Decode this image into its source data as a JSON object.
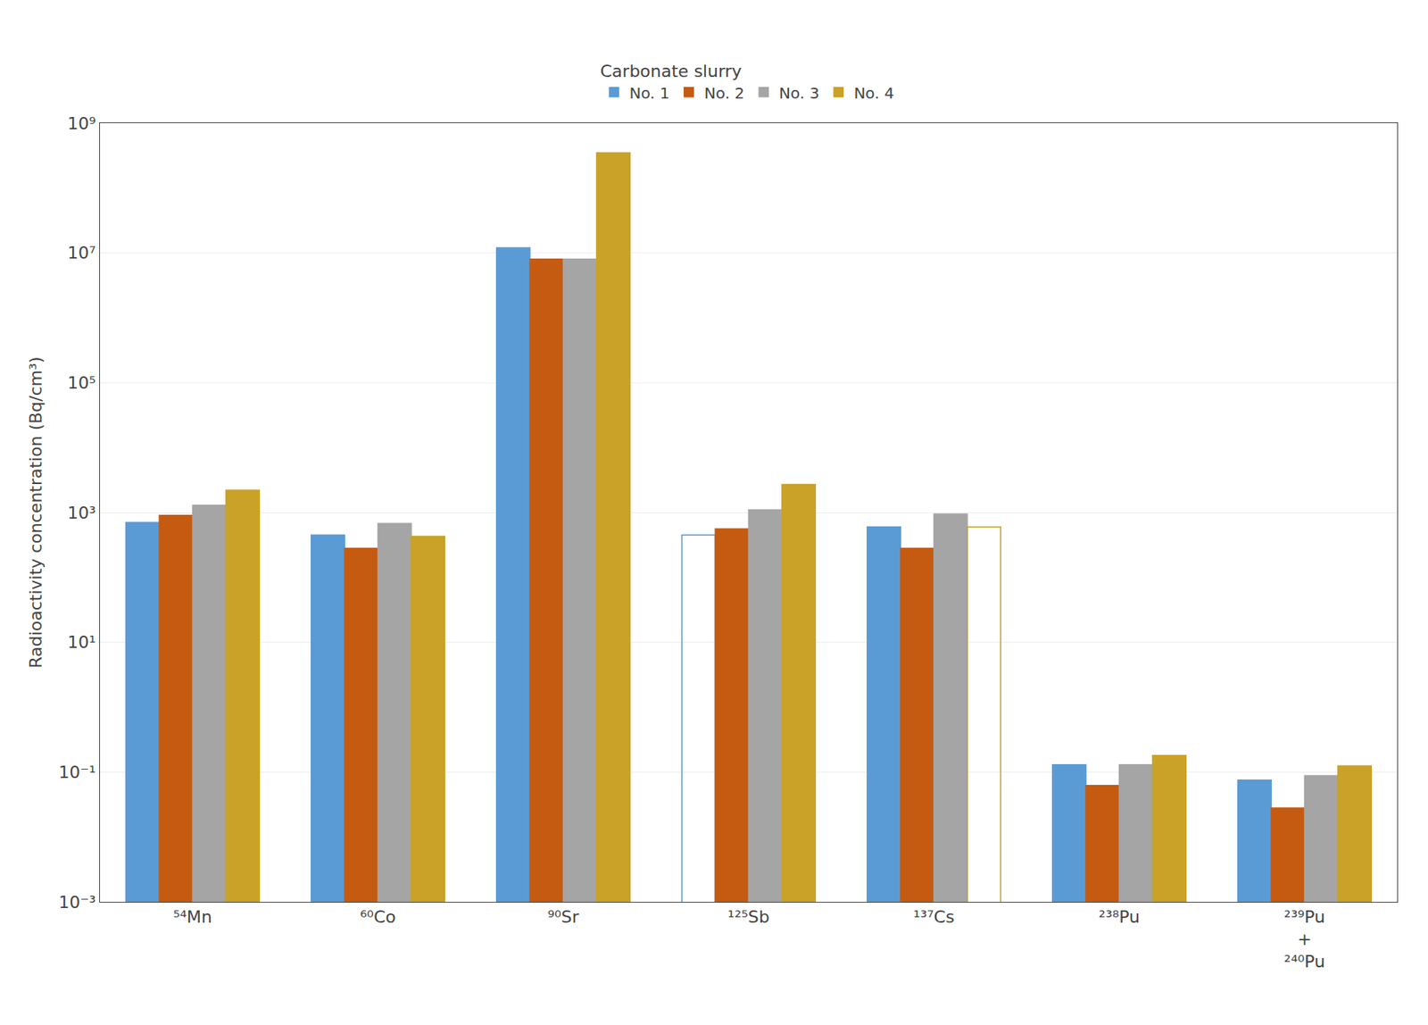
{
  "chart_data": {
    "type": "bar",
    "ylabel": "Radioactivity concentration (Bq/cm³)",
    "legend_title": "Carbonate slurry",
    "categories": [
      "⁵⁴Mn",
      "⁶⁰Co",
      "⁹⁰Sr",
      "¹²⁵Sb",
      "¹³⁷Cs",
      "²³⁸Pu",
      "²³⁹Pu\n+\n²⁴⁰Pu"
    ],
    "series": [
      {
        "name": "No. 1",
        "color": "#5B9BD5",
        "colors": [
          "#5B9BD5",
          "#5B9BD5",
          "#5B9BD5",
          "transparent",
          "#5B9BD5",
          "#5B9BD5",
          "#5B9BD5"
        ],
        "values": [
          700,
          450,
          12000000.0,
          450,
          600,
          0.13,
          0.075
        ]
      },
      {
        "name": "No. 2",
        "color": "#C55A11",
        "values": [
          900,
          280,
          8000000.0,
          560,
          280,
          0.062,
          0.028
        ]
      },
      {
        "name": "No. 3",
        "color": "#A5A5A5",
        "values": [
          1300,
          680,
          8000000.0,
          1100,
          950,
          0.13,
          0.088
        ]
      },
      {
        "name": "No. 4",
        "color": "#C9A227",
        "colors": [
          "#C9A227",
          "#C9A227",
          "#C9A227",
          "#C9A227",
          "transparent",
          "#C9A227",
          "#C9A227"
        ],
        "values": [
          2200,
          430,
          350000000.0,
          2700,
          600,
          0.18,
          0.125
        ]
      }
    ],
    "log": "y",
    "ylim": [
      0.001,
      1000000000
    ],
    "yticks": [
      {
        "value": 0.001,
        "label": "10⁻³"
      },
      {
        "value": 0.1,
        "label": "10⁻¹"
      },
      {
        "value": 10,
        "label": "10¹"
      },
      {
        "value": 1000,
        "label": "10³"
      },
      {
        "value": 100000,
        "label": "10⁵"
      },
      {
        "value": 10000000,
        "label": "10⁷"
      },
      {
        "value": 1000000000,
        "label": "10⁹"
      }
    ],
    "grid": true,
    "legend": "top"
  }
}
